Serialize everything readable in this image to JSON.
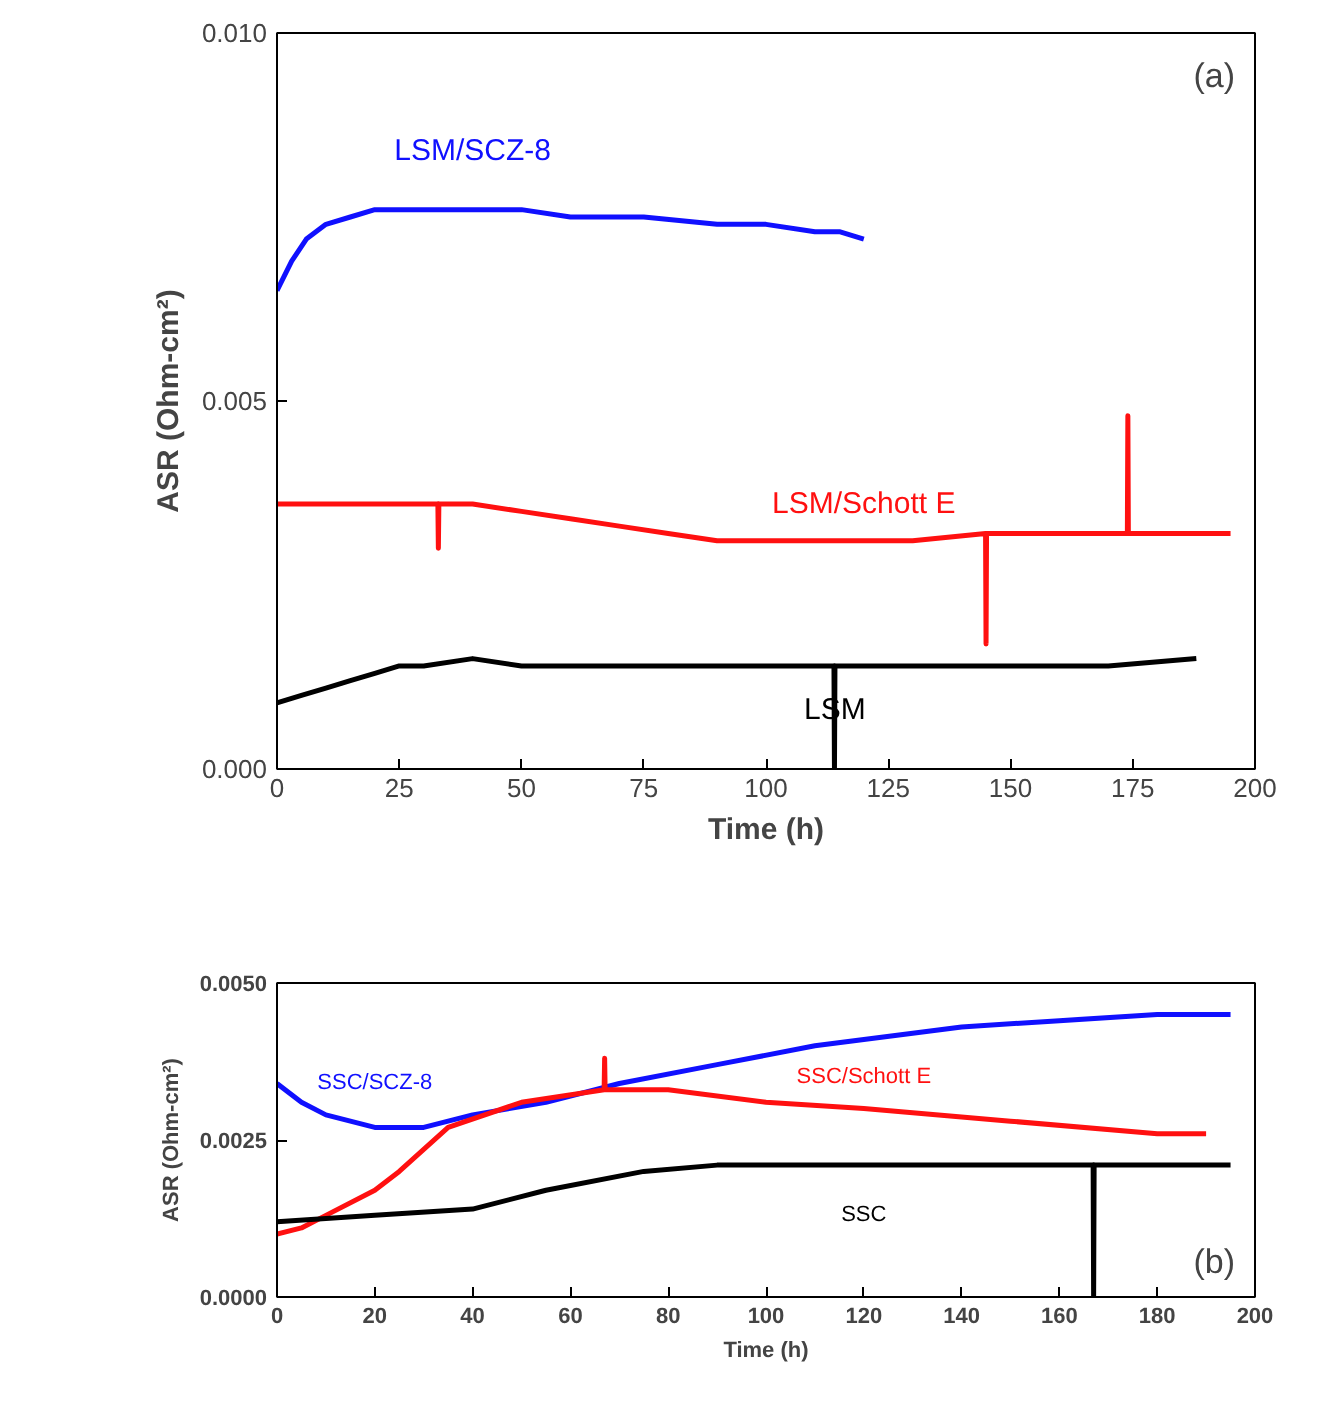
{
  "chart_data": [
    {
      "type": "line",
      "xlabel": "Time (h)",
      "ylabel": "ASR (Ohm-cm²)",
      "xlim": [
        0,
        200
      ],
      "ylim": [
        0,
        0.01
      ],
      "xticks": [
        0,
        25,
        50,
        75,
        100,
        125,
        150,
        175,
        200
      ],
      "yticks": [
        {
          "value": 0,
          "label": "0.000"
        },
        {
          "value": 0.005,
          "label": "0.005"
        },
        {
          "value": 0.01,
          "label": "0.010"
        }
      ],
      "grid": false,
      "annotations": [
        "(a)"
      ],
      "series": [
        {
          "name": "LSM/SCZ-8",
          "color": "#1010ff",
          "x": [
            0,
            3,
            6,
            10,
            15,
            20,
            25,
            30,
            40,
            50,
            60,
            75,
            90,
            100,
            110,
            115,
            120
          ],
          "values": [
            0.0065,
            0.0069,
            0.0072,
            0.0074,
            0.0075,
            0.0076,
            0.0076,
            0.0076,
            0.0076,
            0.0076,
            0.0075,
            0.0075,
            0.0074,
            0.0074,
            0.0073,
            0.0073,
            0.0072
          ]
        },
        {
          "name": "LSM/Schott E",
          "color": "#ff1010",
          "x": [
            0,
            10,
            20,
            32.9,
            33,
            33.1,
            40,
            50,
            60,
            70,
            80,
            90,
            100,
            110,
            120,
            130,
            144.9,
            145,
            145.1,
            160,
            173.9,
            174,
            174.1,
            185,
            195
          ],
          "values": [
            0.0036,
            0.0036,
            0.0036,
            0.0036,
            0.003,
            0.0036,
            0.0036,
            0.0035,
            0.0034,
            0.0033,
            0.0032,
            0.0031,
            0.0031,
            0.0031,
            0.0031,
            0.0031,
            0.0032,
            0.0017,
            0.0032,
            0.0032,
            0.0032,
            0.0048,
            0.0032,
            0.0032,
            0.0032
          ]
        },
        {
          "name": "LSM",
          "color": "#000000",
          "x": [
            0,
            5,
            10,
            15,
            20,
            25,
            30,
            40,
            50,
            60,
            70,
            80,
            90,
            100,
            113.9,
            114,
            114.1,
            130,
            150,
            170,
            188
          ],
          "values": [
            0.0009,
            0.001,
            0.0011,
            0.0012,
            0.0013,
            0.0014,
            0.0014,
            0.0015,
            0.0014,
            0.0014,
            0.0014,
            0.0014,
            0.0014,
            0.0014,
            0.0014,
            0.0,
            0.0014,
            0.0014,
            0.0014,
            0.0014,
            0.0015
          ]
        }
      ]
    },
    {
      "type": "line",
      "xlabel": "Time (h)",
      "ylabel": "ASR (Ohm-cm²)",
      "xlim": [
        0,
        200
      ],
      "ylim": [
        0,
        0.005
      ],
      "xticks": [
        0,
        20,
        40,
        60,
        80,
        100,
        120,
        140,
        160,
        180,
        200
      ],
      "yticks": [
        {
          "value": 0,
          "label": "0.0000"
        },
        {
          "value": 0.0025,
          "label": "0.0025"
        },
        {
          "value": 0.005,
          "label": "0.0050"
        }
      ],
      "grid": false,
      "annotations": [
        "(b)"
      ],
      "series": [
        {
          "name": "SSC/SCZ-8",
          "color": "#1010ff",
          "x": [
            0,
            5,
            10,
            20,
            30,
            40,
            55,
            70,
            90,
            110,
            140,
            160,
            180,
            195
          ],
          "values": [
            0.0034,
            0.0031,
            0.0029,
            0.0027,
            0.0027,
            0.0029,
            0.0031,
            0.0034,
            0.0037,
            0.004,
            0.0043,
            0.0044,
            0.0045,
            0.0045
          ]
        },
        {
          "name": "SSC/Schott E",
          "color": "#ff1010",
          "x": [
            0,
            5,
            10,
            20,
            25,
            35,
            50,
            66.9,
            67,
            67.1,
            80,
            100,
            120,
            150,
            180,
            190
          ],
          "values": [
            0.001,
            0.0011,
            0.0013,
            0.0017,
            0.002,
            0.0027,
            0.0031,
            0.0033,
            0.0038,
            0.0033,
            0.0033,
            0.0031,
            0.003,
            0.0028,
            0.0026,
            0.0026
          ]
        },
        {
          "name": "SSC",
          "color": "#000000",
          "x": [
            0,
            20,
            40,
            55,
            75,
            90,
            120,
            150,
            166.9,
            167,
            167.1,
            180,
            195
          ],
          "values": [
            0.0012,
            0.0013,
            0.0014,
            0.0017,
            0.002,
            0.0021,
            0.0021,
            0.0021,
            0.0021,
            0.0,
            0.0021,
            0.0021,
            0.0021
          ]
        }
      ]
    }
  ]
}
